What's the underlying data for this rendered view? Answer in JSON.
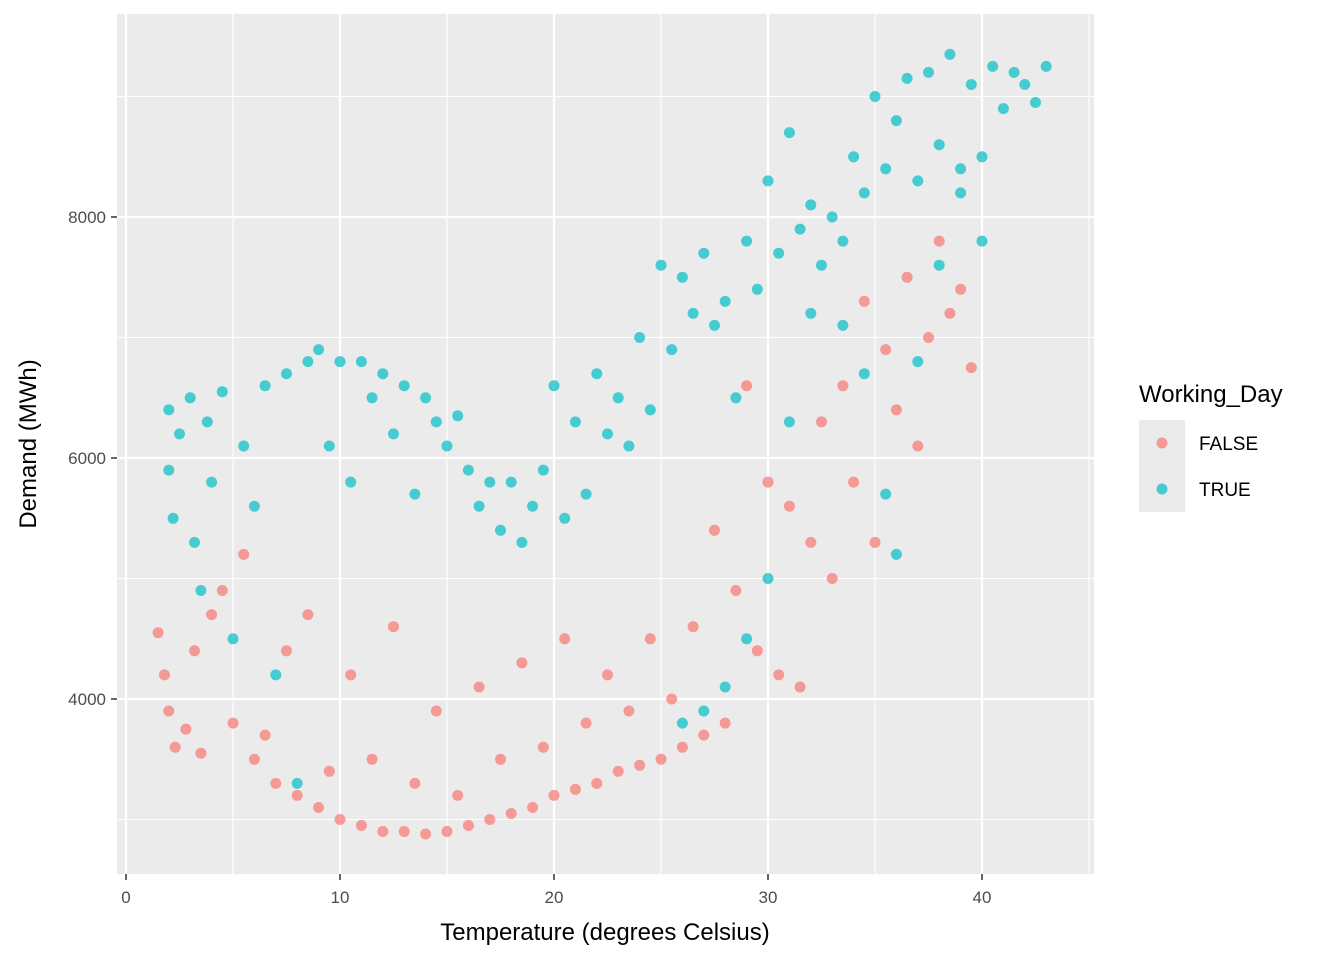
{
  "chart_data": {
    "type": "scatter",
    "title": "",
    "xlabel": "Temperature (degrees Celsius)",
    "ylabel": "Demand (MWh)",
    "xlim": [
      0,
      45
    ],
    "ylim": [
      2600,
      9500
    ],
    "x_ticks": [
      0,
      10,
      20,
      30,
      40
    ],
    "y_ticks": [
      4000,
      6000,
      8000
    ],
    "grid": true,
    "legend": {
      "title": "Working_Day",
      "placement": "right"
    },
    "series": [
      {
        "name": "FALSE",
        "color": "#F8766D",
        "points": [
          [
            1.5,
            4550
          ],
          [
            1.8,
            4200
          ],
          [
            2.0,
            3900
          ],
          [
            2.3,
            3600
          ],
          [
            2.8,
            3750
          ],
          [
            3.2,
            4400
          ],
          [
            3.5,
            3550
          ],
          [
            4.0,
            4700
          ],
          [
            4.5,
            4900
          ],
          [
            5.0,
            3800
          ],
          [
            5.5,
            5200
          ],
          [
            6.0,
            3500
          ],
          [
            6.5,
            3700
          ],
          [
            7.0,
            3300
          ],
          [
            7.5,
            4400
          ],
          [
            8.0,
            3200
          ],
          [
            8.5,
            4700
          ],
          [
            9.0,
            3100
          ],
          [
            9.5,
            3400
          ],
          [
            10.0,
            3000
          ],
          [
            10.5,
            4200
          ],
          [
            11.0,
            2950
          ],
          [
            11.5,
            3500
          ],
          [
            12.0,
            2900
          ],
          [
            12.5,
            4600
          ],
          [
            13.0,
            2900
          ],
          [
            13.5,
            3300
          ],
          [
            14.0,
            2880
          ],
          [
            14.5,
            3900
          ],
          [
            15.0,
            2900
          ],
          [
            15.5,
            3200
          ],
          [
            16.0,
            2950
          ],
          [
            16.5,
            4100
          ],
          [
            17.0,
            3000
          ],
          [
            17.5,
            3500
          ],
          [
            18.0,
            3050
          ],
          [
            18.5,
            4300
          ],
          [
            19.0,
            3100
          ],
          [
            19.5,
            3600
          ],
          [
            20.0,
            3200
          ],
          [
            20.5,
            4500
          ],
          [
            21.0,
            3250
          ],
          [
            21.5,
            3800
          ],
          [
            22.0,
            3300
          ],
          [
            22.5,
            4200
          ],
          [
            23.0,
            3400
          ],
          [
            23.5,
            3900
          ],
          [
            24.0,
            3450
          ],
          [
            24.5,
            4500
          ],
          [
            25.0,
            3500
          ],
          [
            25.5,
            4000
          ],
          [
            26.0,
            3600
          ],
          [
            26.5,
            4600
          ],
          [
            27.0,
            3700
          ],
          [
            27.5,
            5400
          ],
          [
            28.0,
            3800
          ],
          [
            28.5,
            4900
          ],
          [
            29.0,
            6600
          ],
          [
            29.5,
            4400
          ],
          [
            30.0,
            5800
          ],
          [
            30.5,
            4200
          ],
          [
            31.0,
            5600
          ],
          [
            31.5,
            4100
          ],
          [
            32.0,
            5300
          ],
          [
            32.5,
            6300
          ],
          [
            33.0,
            5000
          ],
          [
            33.5,
            6600
          ],
          [
            34.0,
            5800
          ],
          [
            34.5,
            7300
          ],
          [
            35.0,
            5300
          ],
          [
            35.5,
            6900
          ],
          [
            36.0,
            6400
          ],
          [
            36.5,
            7500
          ],
          [
            37.0,
            6100
          ],
          [
            37.5,
            7000
          ],
          [
            38.0,
            7800
          ],
          [
            38.5,
            7200
          ],
          [
            39.0,
            7400
          ],
          [
            39.5,
            6750
          ]
        ]
      },
      {
        "name": "TRUE",
        "color": "#00BFC4",
        "points": [
          [
            2.0,
            6400
          ],
          [
            2.0,
            5900
          ],
          [
            2.2,
            5500
          ],
          [
            2.5,
            6200
          ],
          [
            3.0,
            6500
          ],
          [
            3.2,
            5300
          ],
          [
            3.5,
            4900
          ],
          [
            3.8,
            6300
          ],
          [
            4.0,
            5800
          ],
          [
            4.5,
            6550
          ],
          [
            5.0,
            4500
          ],
          [
            5.5,
            6100
          ],
          [
            6.0,
            5600
          ],
          [
            6.5,
            6600
          ],
          [
            7.0,
            4200
          ],
          [
            7.5,
            6700
          ],
          [
            8.0,
            3300
          ],
          [
            8.5,
            6800
          ],
          [
            9.0,
            6900
          ],
          [
            9.5,
            6100
          ],
          [
            10.0,
            6800
          ],
          [
            10.5,
            5800
          ],
          [
            11.0,
            6800
          ],
          [
            11.5,
            6500
          ],
          [
            12.0,
            6700
          ],
          [
            12.5,
            6200
          ],
          [
            13.0,
            6600
          ],
          [
            13.5,
            5700
          ],
          [
            14.0,
            6500
          ],
          [
            14.5,
            6300
          ],
          [
            15.0,
            6100
          ],
          [
            15.5,
            6350
          ],
          [
            16.0,
            5900
          ],
          [
            16.5,
            5600
          ],
          [
            17.0,
            5800
          ],
          [
            17.5,
            5400
          ],
          [
            18.0,
            5800
          ],
          [
            18.5,
            5300
          ],
          [
            19.0,
            5600
          ],
          [
            19.5,
            5900
          ],
          [
            20.0,
            6600
          ],
          [
            20.5,
            5500
          ],
          [
            21.0,
            6300
          ],
          [
            21.5,
            5700
          ],
          [
            22.0,
            6700
          ],
          [
            22.5,
            6200
          ],
          [
            23.0,
            6500
          ],
          [
            23.5,
            6100
          ],
          [
            24.0,
            7000
          ],
          [
            24.5,
            6400
          ],
          [
            25.0,
            7600
          ],
          [
            25.5,
            6900
          ],
          [
            26.0,
            7500
          ],
          [
            26.5,
            7200
          ],
          [
            27.0,
            7700
          ],
          [
            27.5,
            7100
          ],
          [
            28.0,
            7300
          ],
          [
            28.5,
            6500
          ],
          [
            29.0,
            7800
          ],
          [
            29.5,
            7400
          ],
          [
            30.0,
            8300
          ],
          [
            30.5,
            7700
          ],
          [
            31.0,
            8700
          ],
          [
            31.5,
            7900
          ],
          [
            32.0,
            8100
          ],
          [
            32.5,
            7600
          ],
          [
            33.0,
            8000
          ],
          [
            33.5,
            7800
          ],
          [
            34.0,
            8500
          ],
          [
            34.5,
            8200
          ],
          [
            35.0,
            9000
          ],
          [
            35.5,
            8400
          ],
          [
            36.0,
            8800
          ],
          [
            36.5,
            9150
          ],
          [
            37.0,
            8300
          ],
          [
            37.5,
            9200
          ],
          [
            38.0,
            8600
          ],
          [
            38.5,
            9350
          ],
          [
            39.0,
            8200
          ],
          [
            39.5,
            9100
          ],
          [
            40.0,
            8500
          ],
          [
            40.5,
            9250
          ],
          [
            41.0,
            8900
          ],
          [
            41.5,
            9200
          ],
          [
            42.0,
            9100
          ],
          [
            42.5,
            8950
          ],
          [
            43.0,
            9250
          ],
          [
            32.0,
            7200
          ],
          [
            30.0,
            5000
          ],
          [
            31.0,
            6300
          ],
          [
            29.0,
            4500
          ],
          [
            28.0,
            4100
          ],
          [
            27.0,
            3900
          ],
          [
            26.0,
            3800
          ],
          [
            36.0,
            5200
          ],
          [
            35.5,
            5700
          ],
          [
            34.5,
            6700
          ],
          [
            33.5,
            7100
          ],
          [
            37.0,
            6800
          ],
          [
            38.0,
            7600
          ],
          [
            39.0,
            8400
          ],
          [
            40.0,
            7800
          ]
        ]
      }
    ]
  }
}
